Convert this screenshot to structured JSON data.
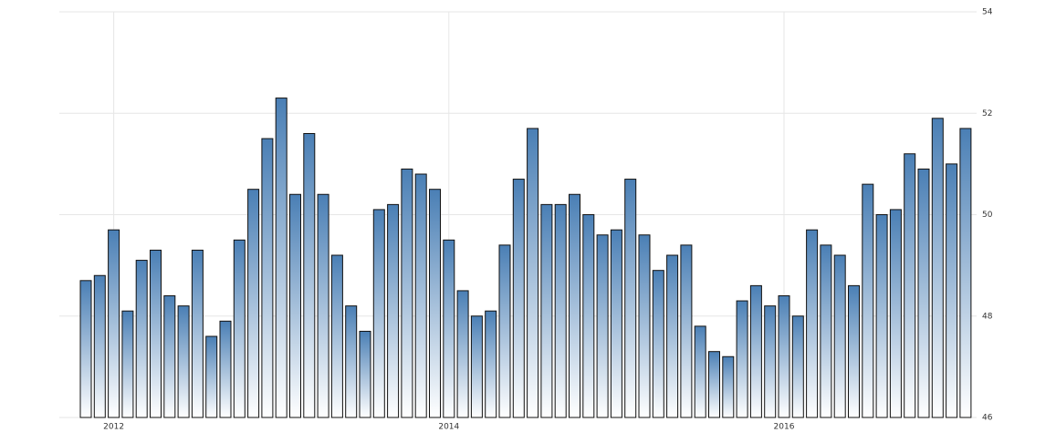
{
  "chart_data": {
    "type": "bar",
    "categories": [
      null,
      null,
      "2012",
      null,
      null,
      null,
      null,
      null,
      null,
      null,
      null,
      null,
      null,
      null,
      null,
      null,
      null,
      null,
      null,
      null,
      null,
      null,
      null,
      null,
      null,
      null,
      "2014",
      null,
      null,
      null,
      null,
      null,
      null,
      null,
      null,
      null,
      null,
      null,
      null,
      null,
      null,
      null,
      null,
      null,
      null,
      null,
      null,
      null,
      null,
      null,
      "2016",
      null,
      null,
      null,
      null,
      null,
      null,
      null,
      null,
      null,
      null,
      null,
      null,
      null
    ],
    "values": [
      48.7,
      48.8,
      49.7,
      48.1,
      49.1,
      49.3,
      48.4,
      48.2,
      49.3,
      47.6,
      47.9,
      49.5,
      50.5,
      51.5,
      52.3,
      50.4,
      51.6,
      50.4,
      49.2,
      48.2,
      47.7,
      50.1,
      50.2,
      50.9,
      50.8,
      50.5,
      49.5,
      48.5,
      48.0,
      48.1,
      49.4,
      50.7,
      51.7,
      50.2,
      50.2,
      50.4,
      50.0,
      49.6,
      49.7,
      50.7,
      49.6,
      48.9,
      49.2,
      49.4,
      47.8,
      47.3,
      47.2,
      48.3,
      48.6,
      48.2,
      48.4,
      48.0,
      49.7,
      49.4,
      49.2,
      48.6,
      50.6,
      50.0,
      50.1,
      51.2,
      50.9,
      51.9,
      51.0,
      51.7
    ],
    "color": "#4a7fb5",
    "ylim": [
      46,
      54
    ],
    "yticks": [
      46,
      48,
      50,
      52,
      54
    ],
    "grid": true
  }
}
